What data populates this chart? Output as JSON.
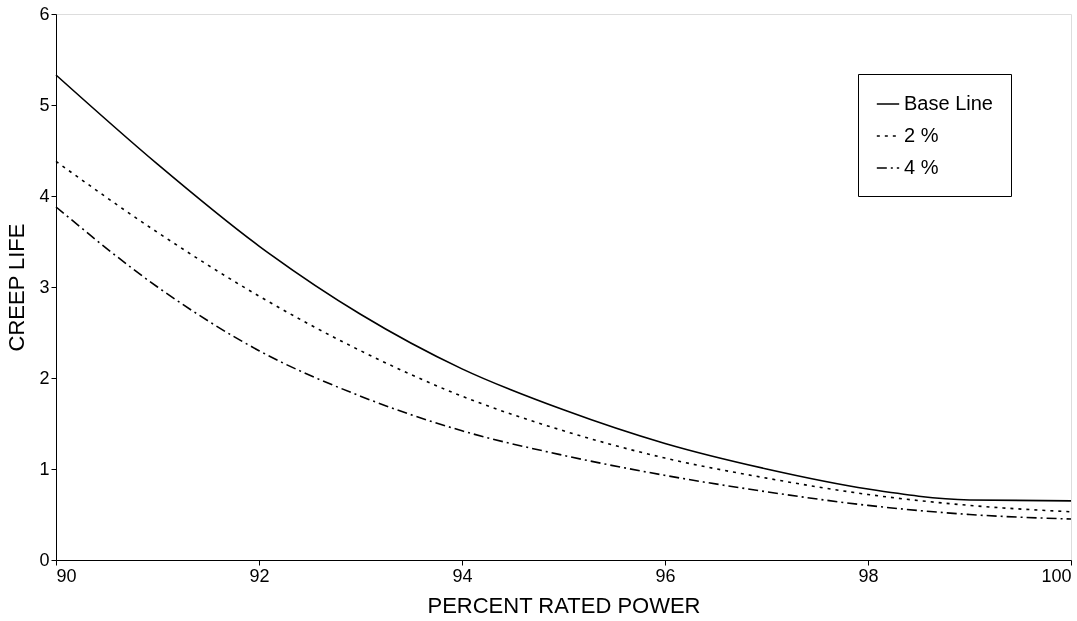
{
  "chart_data": {
    "type": "line",
    "xlabel": "PERCENT RATED POWER",
    "ylabel": "CREEP LIFE",
    "x": [
      90,
      91,
      92,
      93,
      94,
      95,
      96,
      97,
      98,
      99,
      100
    ],
    "series": [
      {
        "name": "Base Line",
        "color": "#000000",
        "line_style": "solid",
        "values": [
          5.33,
          4.35,
          3.45,
          2.7,
          2.1,
          1.65,
          1.28,
          1.0,
          0.78,
          0.66,
          0.65
        ]
      },
      {
        "name": "2 %",
        "color": "#000000",
        "line_style": "dotted",
        "values": [
          4.38,
          3.6,
          2.9,
          2.3,
          1.8,
          1.42,
          1.12,
          0.9,
          0.72,
          0.6,
          0.53
        ]
      },
      {
        "name": "4 %",
        "color": "#000000",
        "line_style": "dashed",
        "values": [
          3.88,
          3.0,
          2.3,
          1.8,
          1.42,
          1.15,
          0.93,
          0.75,
          0.6,
          0.5,
          0.45
        ]
      }
    ],
    "xlim": [
      90,
      100
    ],
    "xticks": [
      90,
      92,
      94,
      96,
      98,
      100
    ],
    "ylim": [
      0,
      6
    ],
    "yticks": [
      0,
      1,
      2,
      3,
      4,
      5,
      6
    ],
    "grid": false,
    "legend": "top right",
    "marker": "none"
  }
}
